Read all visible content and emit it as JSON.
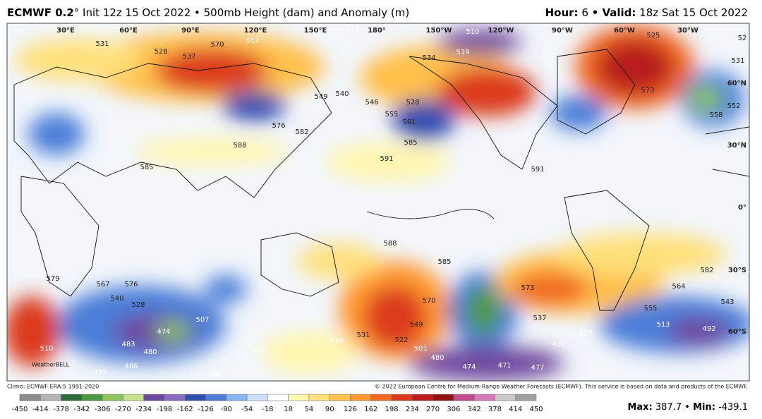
{
  "header": {
    "title": "ECMWF 0.2",
    "subtitle": "° Init 12z 15 Oct 2022 • 500mb Height (dam) and Anomaly (m)",
    "hour_label": "Hour:",
    "hour": 6,
    "valid_label": "• Valid:",
    "valid": "18z Sat 15 Oct 2022"
  },
  "map": {
    "lon_labels": [
      "30°E",
      "60°E",
      "90°E",
      "120°E",
      "150°E",
      "180°",
      "150°W",
      "120°W",
      "90°W",
      "60°W",
      "30°W"
    ],
    "lat_labels": [
      "60°N",
      "30°N",
      "0°",
      "30°S",
      "60°S"
    ],
    "watermark": "WeatherBELL",
    "contour_labels": [
      531,
      528,
      537,
      570,
      513,
      516,
      510,
      519,
      534,
      525,
      52,
      531,
      573,
      558,
      552,
      549,
      540,
      546,
      555,
      561,
      528,
      576,
      582,
      588,
      585,
      591,
      591,
      585,
      588,
      585,
      582,
      564,
      543,
      513,
      492,
      579,
      576,
      567,
      540,
      528,
      507,
      474,
      483,
      480,
      486,
      495,
      492,
      489,
      516,
      531,
      522,
      549,
      570,
      501,
      480,
      474,
      471,
      477,
      492,
      519,
      537,
      555,
      573,
      510
    ]
  },
  "footer": {
    "climo": "Climo: ECMWF ERA-5 1991-2020",
    "copyright": "© 2022 European Centre for Medium-Range Weather Forecasts (ECMWF). This service is based on data and products of the ECMWF.",
    "max_label": "Max:",
    "max": 387.7,
    "sep": "•",
    "min_label": "Min:",
    "min": -439.1
  },
  "colorbar": {
    "ticks": [
      -450,
      -414,
      -378,
      -342,
      -306,
      -270,
      -234,
      -198,
      -162,
      -126,
      -90,
      -54,
      -18,
      18,
      54,
      90,
      126,
      162,
      198,
      234,
      270,
      306,
      342,
      378,
      414,
      450
    ],
    "colors": [
      "#8c8c8c",
      "#b4b4b4",
      "#2e6b3a",
      "#4e9a3e",
      "#8cc35a",
      "#c4e08c",
      "#6e4a9e",
      "#8a6cc0",
      "#3050b0",
      "#4c7ed8",
      "#86b4ee",
      "#c8e0f8",
      "#ffffff",
      "#fff6b0",
      "#ffe07a",
      "#ffc04c",
      "#ff9a30",
      "#f26a22",
      "#dc3a1c",
      "#b81c1c",
      "#901414",
      "#c04a8c",
      "#d77cb8",
      "#c8c8c8",
      "#a0a0a0"
    ]
  }
}
